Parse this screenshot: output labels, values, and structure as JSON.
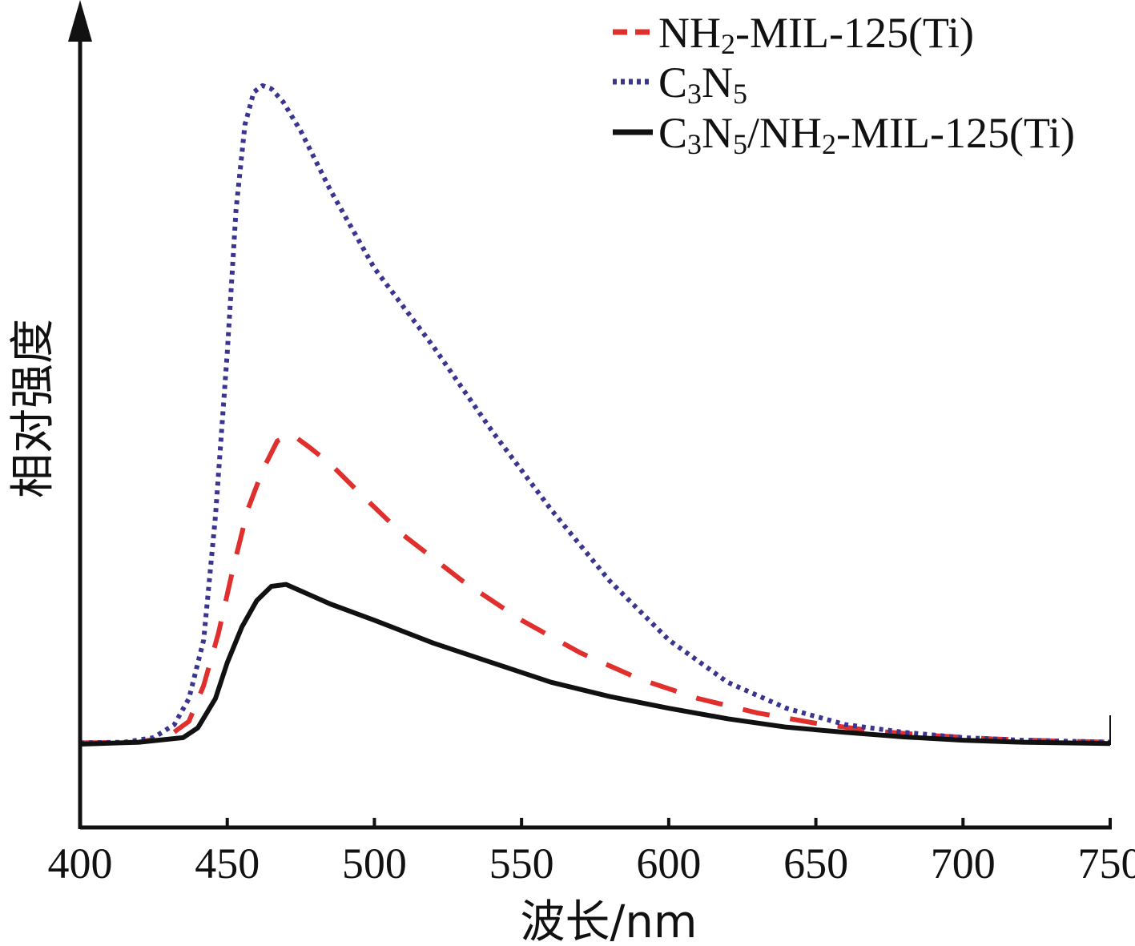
{
  "chart_data": {
    "type": "line",
    "xlabel": "波长/nm",
    "ylabel": "相对强度",
    "xlim": [
      400,
      750
    ],
    "ylim": [
      0,
      100
    ],
    "x_ticks": [
      "400",
      "450",
      "500",
      "550",
      "600",
      "650",
      "700",
      "750"
    ],
    "grid": false,
    "legend_position": "top-right",
    "series": [
      {
        "name": "NH₂-MIL-125(Ti)",
        "legend": [
          {
            "t": "NH"
          },
          {
            "t": "2",
            "sub": true
          },
          {
            "t": "-MIL-125(Ti)"
          }
        ],
        "color": "#e0302e",
        "style": "dashed",
        "x": [
          400,
          420,
          430,
          437,
          442,
          447,
          452,
          457,
          462,
          467,
          472,
          478,
          485,
          495,
          510,
          530,
          550,
          570,
          590,
          610,
          630,
          650,
          670,
          690,
          710,
          730,
          750
        ],
        "y": [
          0.2,
          0.3,
          1.2,
          3.5,
          9,
          17,
          27,
          36,
          42,
          46.5,
          47.5,
          45.5,
          43,
          38.5,
          32,
          25,
          19,
          14,
          10,
          7,
          4.8,
          3.2,
          2,
          1.3,
          0.8,
          0.5,
          0.3
        ]
      },
      {
        "name": "C₃N₅",
        "legend": [
          {
            "t": "C"
          },
          {
            "t": "3",
            "sub": true
          },
          {
            "t": "N"
          },
          {
            "t": "5",
            "sub": true
          }
        ],
        "color": "#3a3590",
        "style": "dotted",
        "x": [
          400,
          415,
          425,
          432,
          437,
          442,
          446,
          450,
          453,
          456,
          459,
          462,
          465,
          469,
          475,
          485,
          500,
          520,
          540,
          560,
          580,
          600,
          620,
          640,
          660,
          680,
          700,
          720,
          750
        ],
        "y": [
          0.2,
          0.3,
          1,
          3,
          7,
          16,
          35,
          60,
          82,
          95,
          100,
          101,
          100.5,
          98.5,
          94,
          85,
          73,
          61,
          48,
          36,
          25,
          16,
          9.5,
          5.5,
          3,
          1.8,
          1,
          0.6,
          0.3
        ]
      },
      {
        "name": "C₃N₅/NH₂-MIL-125(Ti)",
        "legend": [
          {
            "t": "C"
          },
          {
            "t": "3",
            "sub": true
          },
          {
            "t": "N"
          },
          {
            "t": "5",
            "sub": true
          },
          {
            "t": "/NH"
          },
          {
            "t": "2",
            "sub": true
          },
          {
            "t": "-MIL-125(Ti)"
          }
        ],
        "color": "#111111",
        "style": "solid",
        "x": [
          400,
          420,
          435,
          440,
          446,
          450,
          455,
          460,
          465,
          470,
          475,
          485,
          500,
          520,
          540,
          560,
          580,
          600,
          620,
          640,
          660,
          680,
          700,
          720,
          750
        ],
        "y": [
          0,
          0.3,
          1,
          2.5,
          7,
          12.5,
          18,
          22,
          24.2,
          24.5,
          23.5,
          21.5,
          19,
          15.5,
          12.5,
          9.5,
          7.3,
          5.5,
          3.9,
          2.6,
          1.8,
          1.1,
          0.6,
          0.3,
          0.1
        ]
      }
    ]
  }
}
